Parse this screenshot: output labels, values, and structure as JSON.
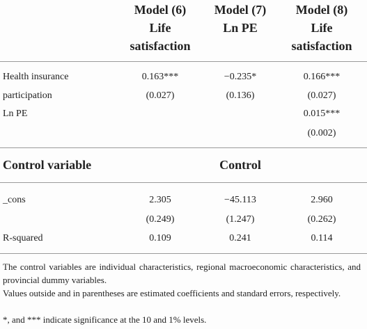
{
  "table": {
    "header": [
      [
        "Model (6)",
        "Life",
        "satisfaction"
      ],
      [
        "Model (7)",
        "Ln PE"
      ],
      [
        "Model (8)",
        "Life",
        "satisfaction"
      ]
    ],
    "rows": [
      [
        "Health insurance",
        "0.163***",
        "−0.235*",
        "0.166***"
      ],
      [
        "participation",
        "(0.027)",
        "(0.136)",
        "(0.027)"
      ],
      [
        "Ln PE",
        null,
        null,
        "0.015***"
      ],
      [
        null,
        null,
        null,
        "(0.002)"
      ]
    ],
    "control_row": {
      "label": "Control variable",
      "value": "Control"
    },
    "rows2": [
      [
        "_cons",
        "2.305",
        "−45.113",
        "2.960"
      ],
      [
        null,
        "(0.249)",
        "(1.247)",
        "(0.262)"
      ],
      [
        "R-squared",
        "0.109",
        "0.241",
        "0.114"
      ]
    ]
  },
  "notes": [
    "The control variables are individual characteristics, regional macroeconomic characteristics, and provincial dummy variables.",
    "Values outside and in parentheses are estimated coefficients and standard errors, respectively.",
    "*, and *** indicate significance at the 10 and 1% levels."
  ]
}
